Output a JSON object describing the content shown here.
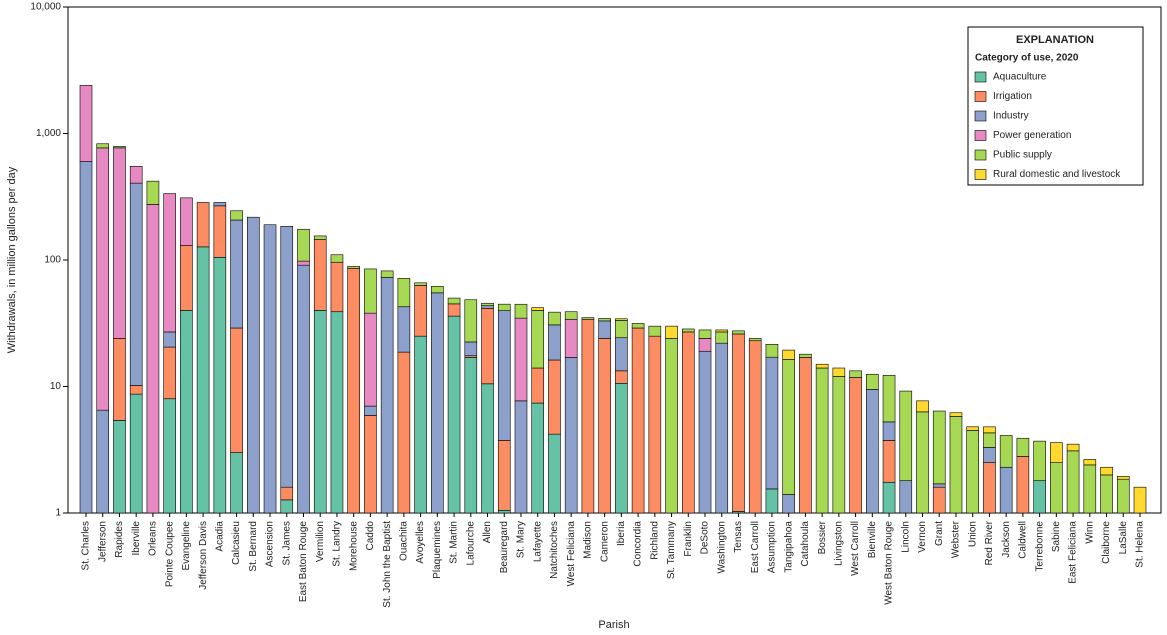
{
  "chart_data": {
    "type": "stacked-bar",
    "y_label": "Withdrawals, in million gallons per day",
    "x_label": "Parish",
    "legend_title": "EXPLANATION",
    "legend_subtitle": "Category of use, 2020",
    "legend_position": "upper right",
    "log_scale": true,
    "ylim": [
      1,
      10000
    ],
    "yticks": [
      1,
      10,
      100,
      {
        "value": 1000,
        "label": "1,000"
      },
      {
        "value": 10000,
        "label": "10,000"
      }
    ],
    "categories": [
      "St. Charles",
      "Jefferson",
      "Rapides",
      "Iberville",
      "Orleans",
      "Pointe Coupee",
      "Evangeline",
      "Jefferson Davis",
      "Acadia",
      "Calcasieu",
      "St. Bernard",
      "Ascension",
      "St. James",
      "East Baton Rouge",
      "Vermilion",
      "St. Landry",
      "Morehouse",
      "Caddo",
      "St. John the Baptist",
      "Ouachita",
      "Avoyelles",
      "Plaquemines",
      "St. Martin",
      "Lafourche",
      "Allen",
      "Beauregard",
      "St. Mary",
      "Lafayette",
      "Natchitoches",
      "West Feliciana",
      "Madison",
      "Cameron",
      "Iberia",
      "Concordia",
      "Richland",
      "St. Tammany",
      "Franklin",
      "DeSoto",
      "Washington",
      "Tensas",
      "East Carroll",
      "Assumption",
      "Tangipahoa",
      "Catahoula",
      "Bossier",
      "Livingston",
      "West Carroll",
      "Bienville",
      "West Baton Rouge",
      "Lincoln",
      "Vernon",
      "Grant",
      "Webster",
      "Union",
      "Red River",
      "Jackson",
      "Caldwell",
      "Terrebonne",
      "Sabine",
      "East Feliciana",
      "Winn",
      "Claiborne",
      "LaSalle",
      "St. Helena"
    ],
    "series": [
      {
        "name": "Aquaculture",
        "color": "#66c2a5",
        "values": [
          null,
          null,
          5.4,
          8.7,
          null,
          8,
          40,
          127,
          105,
          3,
          null,
          null,
          1.27,
          null,
          40,
          39,
          null,
          null,
          null,
          null,
          25,
          null,
          36,
          17,
          10.5,
          1.05,
          null,
          7.4,
          4.2,
          null,
          null,
          null,
          10.6,
          null,
          null,
          null,
          null,
          null,
          null,
          1.03,
          null,
          1.55,
          null,
          null,
          null,
          null,
          null,
          null,
          1.75,
          null,
          null,
          null,
          null,
          null,
          null,
          null,
          null,
          1.8,
          null,
          null,
          null,
          null,
          null,
          null
        ]
      },
      {
        "name": "Irrigation",
        "color": "#fc8d62",
        "values": [
          null,
          null,
          18.6,
          1.5,
          null,
          12.5,
          90,
          158,
          163,
          26,
          null,
          null,
          0.33,
          null,
          105,
          57,
          86,
          5.9,
          null,
          18.7,
          38,
          null,
          9,
          0.5,
          31,
          2.7,
          null,
          6.6,
          12,
          null,
          34,
          24,
          2.7,
          29,
          25,
          null,
          27,
          null,
          null,
          25,
          23,
          null,
          null,
          17,
          null,
          null,
          11.8,
          null,
          2,
          null,
          null,
          1.6,
          null,
          null,
          2.5,
          null,
          2.8,
          null,
          null,
          null,
          null,
          null,
          null,
          null
        ]
      },
      {
        "name": "Industry",
        "color": "#8da0cb",
        "values": [
          600,
          6.5,
          null,
          395,
          null,
          6.5,
          null,
          null,
          17,
          178,
          218,
          190,
          183,
          91,
          null,
          null,
          null,
          1.1,
          73,
          24,
          null,
          55,
          null,
          5,
          2,
          36,
          7.7,
          null,
          14.5,
          17,
          null,
          9,
          11,
          null,
          null,
          null,
          null,
          19,
          22,
          null,
          null,
          15.5,
          1.4,
          null,
          null,
          null,
          null,
          9.5,
          1.5,
          1.8,
          null,
          0.1,
          null,
          null,
          0.8,
          2.3,
          null,
          null,
          null,
          null,
          null,
          null,
          null,
          null
        ]
      },
      {
        "name": "Power generation",
        "color": "#e78ac3",
        "values": [
          1800,
          763,
          746,
          145,
          275,
          308,
          180,
          null,
          null,
          null,
          null,
          null,
          null,
          7,
          null,
          null,
          null,
          31,
          null,
          null,
          null,
          null,
          null,
          null,
          null,
          null,
          27,
          null,
          null,
          17,
          null,
          null,
          null,
          null,
          null,
          null,
          null,
          5,
          null,
          null,
          null,
          null,
          null,
          null,
          null,
          null,
          null,
          null,
          null,
          null,
          null,
          null,
          null,
          null,
          null,
          null,
          null,
          null,
          null,
          null,
          null,
          null,
          null,
          null
        ]
      },
      {
        "name": "Public supply",
        "color": "#a6d854",
        "values": [
          null,
          60,
          20,
          null,
          145,
          null,
          null,
          null,
          null,
          38,
          null,
          null,
          null,
          77,
          10,
          14,
          3,
          47,
          9,
          29,
          3,
          7,
          5,
          26,
          2,
          5,
          10,
          26,
          8,
          5,
          1,
          1.5,
          9,
          2.5,
          5,
          24,
          1.5,
          4,
          5,
          1.5,
          1,
          4.5,
          15,
          1,
          14,
          12,
          1.5,
          3,
          7,
          7.4,
          6.3,
          4.7,
          5.8,
          4.5,
          1,
          1.8,
          1.1,
          1.9,
          2.5,
          3.1,
          2.4,
          2.0,
          1.85,
          null
        ]
      },
      {
        "name": "Rural domestic and livestock",
        "color": "#ffd92f",
        "values": [
          null,
          null,
          null,
          null,
          null,
          null,
          null,
          null,
          null,
          null,
          null,
          null,
          null,
          null,
          null,
          null,
          null,
          null,
          null,
          null,
          null,
          null,
          null,
          null,
          null,
          null,
          null,
          2,
          null,
          null,
          null,
          null,
          1,
          null,
          null,
          6,
          null,
          null,
          1,
          null,
          null,
          null,
          3,
          null,
          1,
          2,
          null,
          null,
          null,
          null,
          1.4,
          null,
          0.4,
          0.3,
          0.5,
          null,
          null,
          null,
          1.1,
          0.4,
          0.25,
          0.3,
          0.1,
          1.6
        ]
      }
    ]
  }
}
